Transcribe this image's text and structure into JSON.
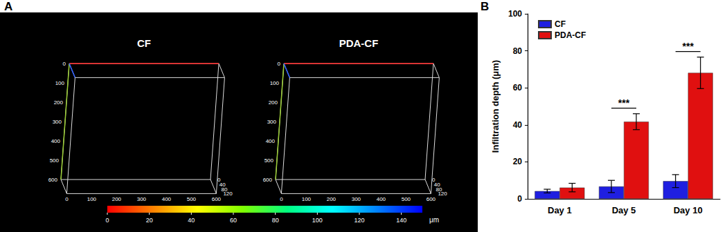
{
  "panel_labels": [
    "A",
    "B"
  ],
  "images": [
    {
      "title": "CF",
      "x_ticks": [
        0,
        100,
        200,
        300,
        400,
        500,
        600
      ],
      "y_ticks": [
        0,
        100,
        200,
        300,
        400,
        500,
        600
      ],
      "z_ticks": [
        0,
        40,
        80,
        120
      ]
    },
    {
      "title": "PDA-CF",
      "x_ticks": [
        0,
        100,
        200,
        300,
        400,
        500,
        600
      ],
      "y_ticks": [
        0,
        100,
        200,
        300,
        400,
        500,
        600
      ],
      "z_ticks": [
        0,
        40,
        80,
        120
      ]
    }
  ],
  "colorbar": {
    "range": [
      0,
      150
    ],
    "ticks": [
      0,
      20,
      40,
      60,
      80,
      100,
      120,
      140
    ],
    "unit": "μm",
    "colors": [
      "#ff0000",
      "#ff8000",
      "#ffff00",
      "#80ff00",
      "#00ff80",
      "#00ffff",
      "#0080ff",
      "#0000ff"
    ]
  },
  "chart_data": {
    "type": "bar",
    "categories": [
      "Day 1",
      "Day 5",
      "Day 10"
    ],
    "y_label": "Infiltration depth (μm)",
    "ylim": [
      0,
      100
    ],
    "yticks": [
      0,
      20,
      40,
      60,
      80,
      100
    ],
    "grid": false,
    "legend": "upper left",
    "series": [
      {
        "name": "CF",
        "color": "#1f1fe0",
        "values": [
          4.2,
          6.7,
          9.6
        ],
        "errors": [
          1.0,
          3.3,
          3.5
        ]
      },
      {
        "name": "PDA-CF",
        "color": "#e01010",
        "values": [
          6.1,
          41.7,
          68.1
        ],
        "errors": [
          2.3,
          4.3,
          8.5
        ]
      }
    ],
    "significance": [
      {
        "category": "Day 5",
        "label": "***"
      },
      {
        "category": "Day 10",
        "label": "***"
      }
    ]
  }
}
